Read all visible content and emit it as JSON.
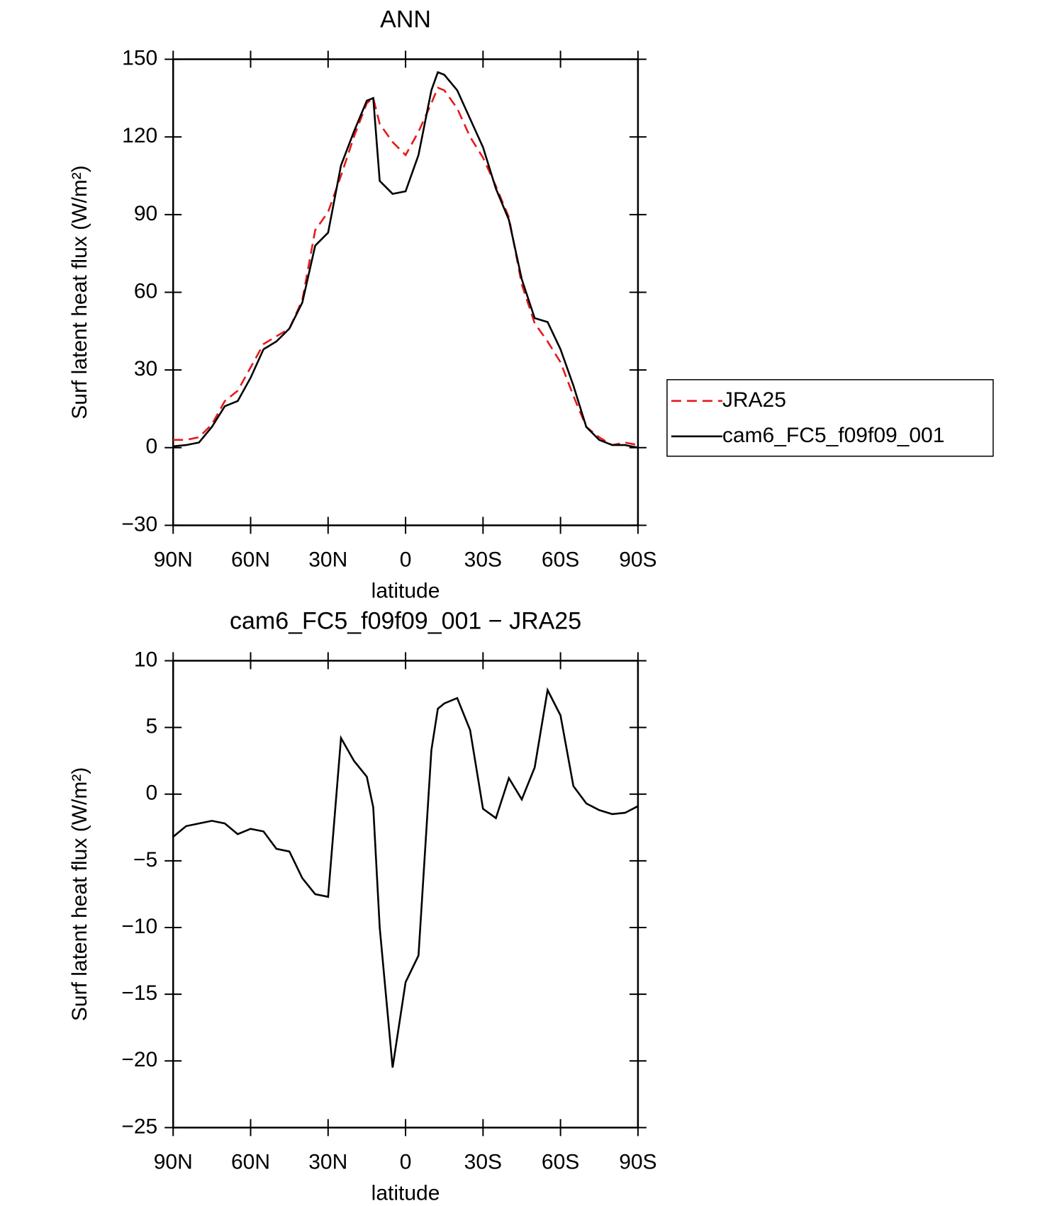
{
  "chart_data": [
    {
      "type": "line",
      "title": "ANN",
      "x_label": "latitude",
      "y_label": "Surf latent heat flux (W/m²)",
      "x": [
        90,
        85,
        80,
        75,
        70,
        65,
        60,
        55,
        50,
        45,
        40,
        35,
        30,
        25,
        20,
        15,
        12.5,
        10,
        5,
        0,
        -5,
        -10,
        -12.5,
        -15,
        -20,
        -25,
        -30,
        -35,
        -40,
        -45,
        -50,
        -55,
        -60,
        -65,
        -70,
        -75,
        -80,
        -85,
        -90
      ],
      "series": [
        {
          "name": "JRA25",
          "color": "#e41a1c",
          "line_style": "dashed",
          "values": [
            3,
            3,
            4,
            9,
            18,
            22,
            31,
            40,
            43,
            46,
            57,
            84,
            91,
            105,
            120,
            133,
            135,
            125,
            118,
            113,
            122,
            133,
            139,
            138,
            131,
            120,
            112,
            101,
            89,
            63,
            48,
            41,
            33,
            20,
            8,
            4,
            1,
            2,
            1
          ]
        },
        {
          "name": "cam6_FC5_f09f09_001",
          "color": "#000000",
          "line_style": "solid",
          "values": [
            0.5,
            1,
            2,
            8,
            16,
            18,
            27,
            38,
            41,
            46,
            56,
            78,
            83,
            109,
            122,
            134,
            135,
            103,
            98,
            99,
            113,
            138,
            145,
            144,
            138,
            127,
            116,
            100,
            88,
            65,
            50,
            48.5,
            38,
            24,
            8,
            3,
            1,
            1,
            0
          ]
        }
      ],
      "xlim": [
        90,
        -90
      ],
      "xticks": [
        {
          "value": 90,
          "label": "90N"
        },
        {
          "value": 60,
          "label": "60N"
        },
        {
          "value": 30,
          "label": "30N"
        },
        0,
        {
          "value": -30,
          "label": "30S"
        },
        {
          "value": -60,
          "label": "60S"
        },
        {
          "value": -90,
          "label": "90S"
        }
      ],
      "ylim": [
        -30,
        150
      ],
      "yticks": [
        {
          "value": -30,
          "label": "−30"
        },
        0,
        30,
        60,
        90,
        120,
        150
      ],
      "legend": "right"
    },
    {
      "type": "line",
      "title": "cam6_FC5_f09f09_001 − JRA25",
      "x_label": "latitude",
      "y_label": "Surf latent heat flux (W/m²)",
      "x": [
        90,
        85,
        80,
        75,
        70,
        65,
        60,
        55,
        50,
        45,
        40,
        35,
        30,
        25,
        20,
        15,
        12.5,
        10,
        5,
        0,
        -5,
        -10,
        -12.5,
        -15,
        -20,
        -25,
        -30,
        -35,
        -40,
        -45,
        -50,
        -55,
        -60,
        -65,
        -70,
        -75,
        -80,
        -85,
        -90
      ],
      "series": [
        {
          "color": "#000000",
          "line_style": "solid",
          "values": [
            -3.2,
            -2.4,
            -2.2,
            -2.0,
            -2.2,
            -3.0,
            -2.6,
            -2.8,
            -4.1,
            -4.3,
            -6.3,
            -7.5,
            -7.7,
            4.2,
            2.5,
            1.3,
            -1.0,
            -10,
            -20.5,
            -14.1,
            -12.1,
            3.3,
            6.4,
            6.8,
            7.2,
            4.8,
            -1.1,
            -1.8,
            1.2,
            -0.4,
            2.0,
            7.8,
            5.9,
            0.6,
            -0.7,
            -1.2,
            -1.5,
            -1.4,
            -0.9
          ]
        }
      ],
      "xlim": [
        90,
        -90
      ],
      "xticks": [
        {
          "value": 90,
          "label": "90N"
        },
        {
          "value": 60,
          "label": "60N"
        },
        {
          "value": 30,
          "label": "30N"
        },
        0,
        {
          "value": -30,
          "label": "30S"
        },
        {
          "value": -60,
          "label": "60S"
        },
        {
          "value": -90,
          "label": "90S"
        }
      ],
      "ylim": [
        -25,
        10
      ],
      "yticks": [
        {
          "value": -25,
          "label": "−25"
        },
        {
          "value": -20,
          "label": "−20"
        },
        {
          "value": -15,
          "label": "−15"
        },
        {
          "value": -10,
          "label": "−10"
        },
        {
          "value": -5,
          "label": "−5"
        },
        0,
        5,
        10
      ]
    }
  ]
}
